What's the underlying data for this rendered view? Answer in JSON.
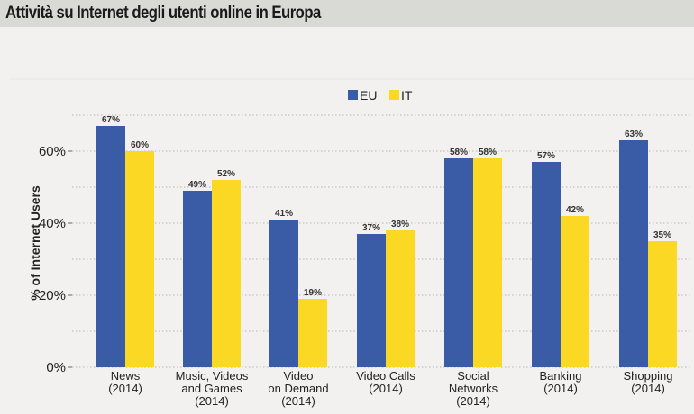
{
  "chart_data": {
    "type": "bar",
    "title": "Attività su Internet degli utenti online in Europa",
    "ylabel": "% of Internet Users",
    "xlabel": "",
    "ylim": [
      0,
      70
    ],
    "yticks": [
      "0%",
      "20%",
      "40%",
      "60%"
    ],
    "grid": true,
    "legend_position": "top-center",
    "categories": [
      [
        "News",
        "(2014)"
      ],
      [
        "Music, Videos",
        "and Games",
        "(2014)"
      ],
      [
        "Video",
        "on Demand",
        "(2014)"
      ],
      [
        "Video Calls",
        "(2014)"
      ],
      [
        "Social",
        "Networks",
        "(2014)"
      ],
      [
        "Banking",
        "(2014)"
      ],
      [
        "Shopping",
        "(2014)"
      ]
    ],
    "series": [
      {
        "name": "EU",
        "color": "#3a5ba5",
        "values": [
          67,
          49,
          41,
          37,
          58,
          57,
          63
        ],
        "labels": [
          "67%",
          "49%",
          "41%",
          "37%",
          "58%",
          "57%",
          "63%"
        ]
      },
      {
        "name": "IT",
        "color": "#fbd824",
        "values": [
          60,
          52,
          19,
          38,
          58,
          42,
          35
        ],
        "labels": [
          "60%",
          "52%",
          "19%",
          "38%",
          "58%",
          "42%",
          "35%"
        ]
      }
    ]
  }
}
